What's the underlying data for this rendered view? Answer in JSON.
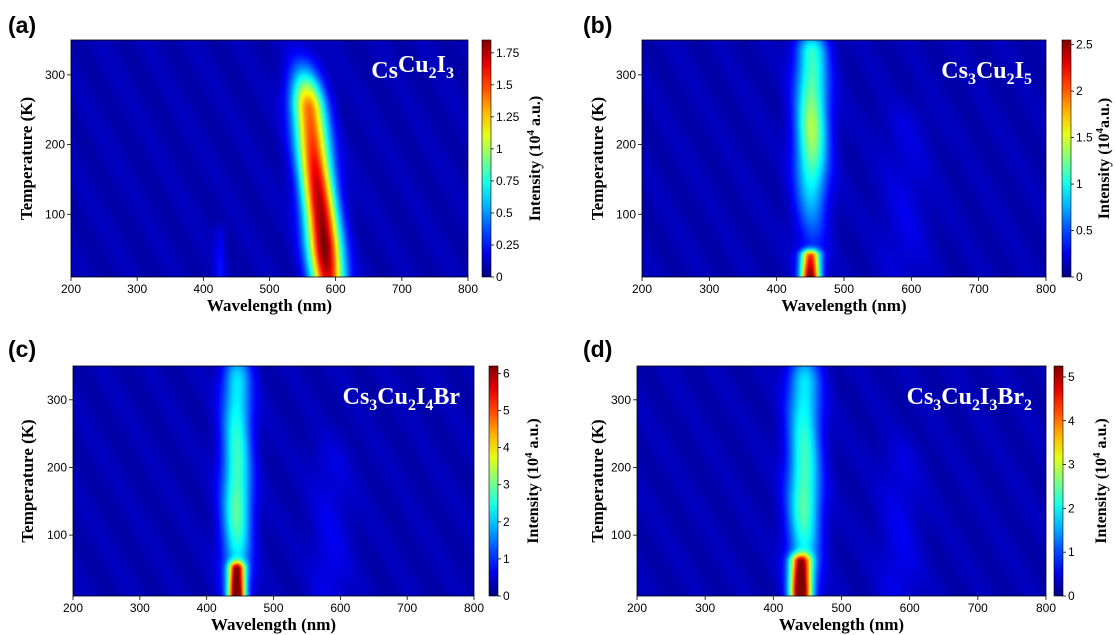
{
  "chart_data": [
    {
      "panel_label": "(a)",
      "type": "heatmap",
      "compound": {
        "parts": [
          [
            "Cs",
            false
          ],
          [
            "Cu",
            false
          ],
          [
            "2",
            true
          ],
          [
            "I",
            false
          ],
          [
            "3",
            true
          ]
        ]
      },
      "xlabel": "Wavelength (nm)",
      "ylabel": "Temperature (K)",
      "xlim": [
        200,
        800
      ],
      "ylim": [
        10,
        350
      ],
      "xticks": [
        200,
        300,
        400,
        500,
        600,
        700,
        800
      ],
      "yticks": [
        100,
        200,
        300
      ],
      "colorbar": {
        "label_prefix": "Intensity (10",
        "label_sup": "4",
        "label_suffix": " a.u.)",
        "max": 1.85,
        "ticks": [
          0,
          0.25,
          0.5,
          0.75,
          1,
          1.25,
          1.5,
          1.75
        ],
        "tick_labels": [
          "0",
          "0.25",
          "0.5",
          "0.75",
          "1",
          "1.25",
          "1.5",
          "1.75"
        ]
      },
      "emission_bands": [
        {
          "center_nm": 582,
          "width_nm": 25,
          "peak_intensity": 1.8,
          "peak_temperature_K": 60,
          "max_temperature_K": 245,
          "slope_nm_per_K": -0.12
        },
        {
          "center_nm": 425,
          "width_nm": 8,
          "peak_intensity": 0.15,
          "peak_temperature_K": 20,
          "max_temperature_K": 70,
          "slope_nm_per_K": 0
        }
      ]
    },
    {
      "panel_label": "(b)",
      "type": "heatmap",
      "compound": {
        "parts": [
          [
            "Cs",
            false
          ],
          [
            "3",
            true
          ],
          [
            "Cu",
            false
          ],
          [
            "2",
            true
          ],
          [
            "I",
            false
          ],
          [
            "5",
            true
          ]
        ]
      },
      "xlabel": "Wavelength (nm)",
      "ylabel": "Temperature (K)",
      "xlim": [
        200,
        800
      ],
      "ylim": [
        10,
        350
      ],
      "xticks": [
        200,
        300,
        400,
        500,
        600,
        700,
        800
      ],
      "yticks": [
        100,
        200,
        300
      ],
      "colorbar": {
        "label_prefix": "Intensity (10",
        "label_sup": "4",
        "label_suffix": "a.u.)",
        "max": 2.55,
        "ticks": [
          0,
          0.5,
          1,
          1.5,
          2,
          2.5
        ],
        "tick_labels": [
          "0",
          "0.5",
          "1",
          "1.5",
          "2",
          "2.5"
        ]
      },
      "emission_bands": [
        {
          "center_nm": 450,
          "width_nm": 14,
          "peak_intensity": 2.45,
          "peak_temperature_K": 10,
          "max_temperature_K": 40,
          "slope_nm_per_K": 0
        },
        {
          "center_nm": 452,
          "width_nm": 24,
          "peak_intensity": 1.25,
          "peak_temperature_K": 230,
          "max_temperature_K": 330,
          "slope_nm_per_K": 0
        },
        {
          "center_nm": 590,
          "width_nm": 35,
          "peak_intensity": 0.12,
          "peak_temperature_K": 90,
          "max_temperature_K": 220,
          "slope_nm_per_K": 0
        }
      ]
    },
    {
      "panel_label": "(c)",
      "type": "heatmap",
      "compound": {
        "parts": [
          [
            "Cs",
            false
          ],
          [
            "3",
            true
          ],
          [
            "Cu",
            false
          ],
          [
            "2",
            true
          ],
          [
            "I",
            false
          ],
          [
            "4",
            true
          ],
          [
            "Br",
            false
          ]
        ]
      },
      "xlabel": "Wavelength (nm)",
      "ylabel": "Temperature (K)",
      "xlim": [
        200,
        800
      ],
      "ylim": [
        10,
        350
      ],
      "xticks": [
        200,
        300,
        400,
        500,
        600,
        700,
        800
      ],
      "yticks": [
        100,
        200,
        300
      ],
      "colorbar": {
        "label_prefix": "Intensity (10",
        "label_sup": "4",
        "label_suffix": " a.u.)",
        "max": 6.2,
        "ticks": [
          0,
          1,
          2,
          3,
          4,
          5,
          6
        ],
        "tick_labels": [
          "0",
          "1",
          "2",
          "3",
          "4",
          "5",
          "6"
        ]
      },
      "emission_bands": [
        {
          "center_nm": 445,
          "width_nm": 12,
          "peak_intensity": 6.0,
          "peak_temperature_K": 15,
          "max_temperature_K": 50,
          "slope_nm_per_K": 0
        },
        {
          "center_nm": 445,
          "width_nm": 22,
          "peak_intensity": 2.6,
          "peak_temperature_K": 150,
          "max_temperature_K": 320,
          "slope_nm_per_K": 0
        },
        {
          "center_nm": 585,
          "width_nm": 30,
          "peak_intensity": 0.35,
          "peak_temperature_K": 60,
          "max_temperature_K": 200,
          "slope_nm_per_K": 0
        }
      ]
    },
    {
      "panel_label": "(d)",
      "type": "heatmap",
      "compound": {
        "parts": [
          [
            "Cs",
            false
          ],
          [
            "3",
            true
          ],
          [
            "Cu",
            false
          ],
          [
            "2",
            true
          ],
          [
            "I",
            false
          ],
          [
            "3",
            true
          ],
          [
            "Br",
            false
          ],
          [
            "2",
            true
          ]
        ]
      },
      "xlabel": "Wavelength (nm)",
      "ylabel": "Temperature (K)",
      "xlim": [
        200,
        800
      ],
      "ylim": [
        10,
        350
      ],
      "xticks": [
        200,
        300,
        400,
        500,
        600,
        700,
        800
      ],
      "yticks": [
        100,
        200,
        300
      ],
      "colorbar": {
        "label_prefix": "Intensity (10",
        "label_sup": "4",
        "label_suffix": " a.u.)",
        "max": 5.25,
        "ticks": [
          0,
          1,
          2,
          3,
          4,
          5
        ],
        "tick_labels": [
          "0",
          "1",
          "2",
          "3",
          "4",
          "5"
        ]
      },
      "emission_bands": [
        {
          "center_nm": 440,
          "width_nm": 15,
          "peak_intensity": 5.1,
          "peak_temperature_K": 20,
          "max_temperature_K": 60,
          "slope_nm_per_K": 0
        },
        {
          "center_nm": 445,
          "width_nm": 24,
          "peak_intensity": 2.2,
          "peak_temperature_K": 160,
          "max_temperature_K": 320,
          "slope_nm_per_K": 0
        },
        {
          "center_nm": 585,
          "width_nm": 30,
          "peak_intensity": 0.3,
          "peak_temperature_K": 60,
          "max_temperature_K": 200,
          "slope_nm_per_K": 0
        }
      ]
    }
  ]
}
